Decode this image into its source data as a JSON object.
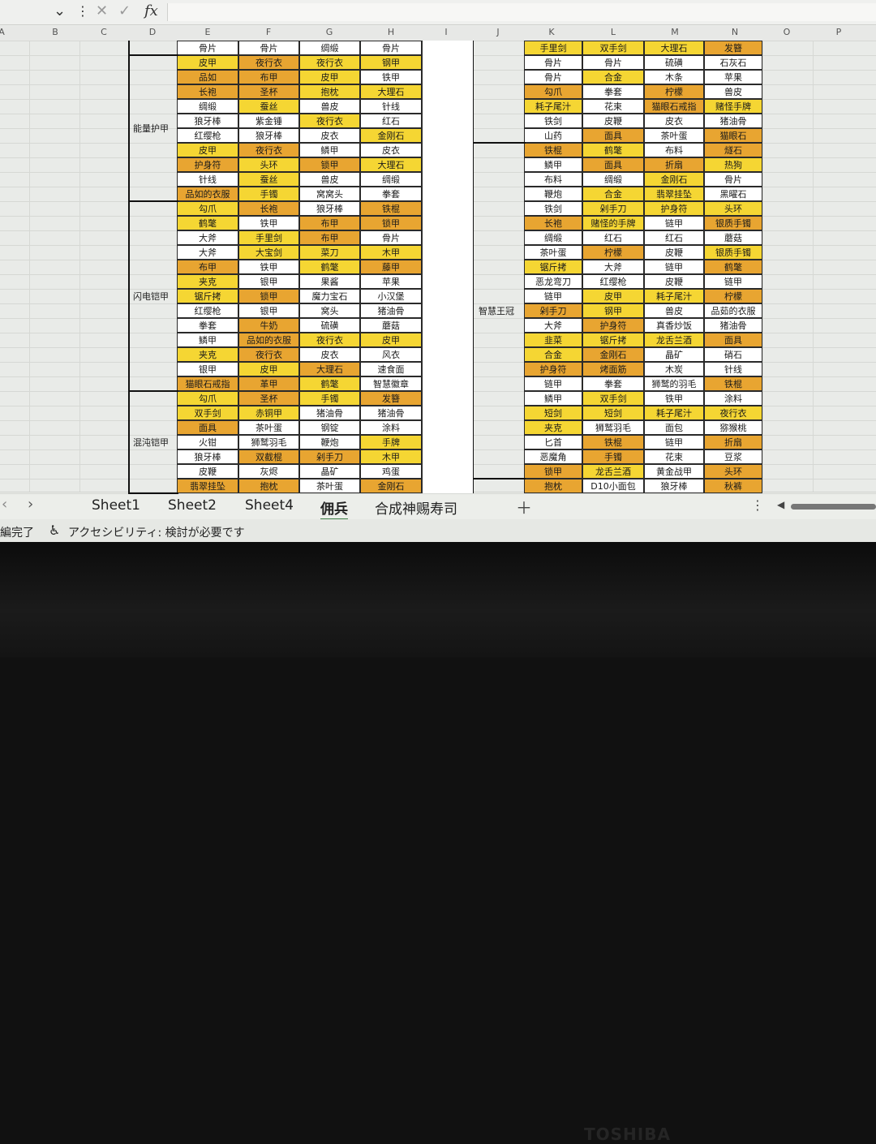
{
  "formula_bar": {
    "dropdown_icon": "chevron-down-icon",
    "more_icon": "more-vertical-icon",
    "cancel_icon": "close-icon",
    "confirm_icon": "check-icon",
    "fx_label": "fx"
  },
  "columns": [
    "A",
    "B",
    "C",
    "D",
    "E",
    "F",
    "G",
    "H",
    "I",
    "J",
    "K",
    "L",
    "M",
    "N",
    "O",
    "P"
  ],
  "colors": {
    "y": "#f5d633",
    "o": "#e8a531",
    "w": "#ffffff"
  },
  "left_groups": [
    {
      "label": "能量护甲",
      "start": 1,
      "end": 10
    },
    {
      "label": "闪电铠甲",
      "start": 11,
      "end": 23
    },
    {
      "label": "混沌铠甲",
      "start": 24,
      "end": 30
    }
  ],
  "right_groups": [
    {
      "label": "智慧王冠",
      "start": 7,
      "end": 29
    }
  ],
  "left_rows": [
    [
      [
        "骨片",
        "w"
      ],
      [
        "骨片",
        "w"
      ],
      [
        "绸缎",
        "w"
      ],
      [
        "骨片",
        "w"
      ]
    ],
    [
      [
        "皮甲",
        "y"
      ],
      [
        "夜行衣",
        "o"
      ],
      [
        "夜行衣",
        "y"
      ],
      [
        "钢甲",
        "y"
      ]
    ],
    [
      [
        "品如",
        "o"
      ],
      [
        "布甲",
        "o"
      ],
      [
        "皮甲",
        "y"
      ],
      [
        "铁甲",
        "w"
      ]
    ],
    [
      [
        "长袍",
        "o"
      ],
      [
        "圣杯",
        "o"
      ],
      [
        "抱枕",
        "y"
      ],
      [
        "大理石",
        "y"
      ]
    ],
    [
      [
        "绸缎",
        "w"
      ],
      [
        "蚕丝",
        "y"
      ],
      [
        "兽皮",
        "w"
      ],
      [
        "针线",
        "w"
      ]
    ],
    [
      [
        "狼牙棒",
        "w"
      ],
      [
        "紫金锤",
        "w"
      ],
      [
        "夜行衣",
        "y"
      ],
      [
        "红石",
        "w"
      ]
    ],
    [
      [
        "红缨枪",
        "w"
      ],
      [
        "狼牙棒",
        "w"
      ],
      [
        "皮衣",
        "w"
      ],
      [
        "金刚石",
        "y"
      ]
    ],
    [
      [
        "皮甲",
        "y"
      ],
      [
        "夜行衣",
        "o"
      ],
      [
        "鳞甲",
        "w"
      ],
      [
        "皮衣",
        "w"
      ]
    ],
    [
      [
        "护身符",
        "o"
      ],
      [
        "头环",
        "y"
      ],
      [
        "锁甲",
        "o"
      ],
      [
        "大理石",
        "y"
      ]
    ],
    [
      [
        "针线",
        "w"
      ],
      [
        "蚕丝",
        "y"
      ],
      [
        "兽皮",
        "w"
      ],
      [
        "绸缎",
        "w"
      ]
    ],
    [
      [
        "品如的衣服",
        "o"
      ],
      [
        "手镯",
        "y"
      ],
      [
        "窝窝头",
        "w"
      ],
      [
        "拳套",
        "w"
      ]
    ],
    [
      [
        "勾爪",
        "y"
      ],
      [
        "长袍",
        "o"
      ],
      [
        "狼牙棒",
        "w"
      ],
      [
        "铁棍",
        "o"
      ]
    ],
    [
      [
        "鹤氅",
        "y"
      ],
      [
        "铁甲",
        "w"
      ],
      [
        "布甲",
        "o"
      ],
      [
        "锁甲",
        "o"
      ]
    ],
    [
      [
        "大斧",
        "w"
      ],
      [
        "手里剑",
        "y"
      ],
      [
        "布甲",
        "o"
      ],
      [
        "骨片",
        "w"
      ]
    ],
    [
      [
        "大斧",
        "w"
      ],
      [
        "大宝剑",
        "y"
      ],
      [
        "菜刀",
        "y"
      ],
      [
        "木甲",
        "y"
      ]
    ],
    [
      [
        "布甲",
        "o"
      ],
      [
        "铁甲",
        "w"
      ],
      [
        "鹤氅",
        "y"
      ],
      [
        "藤甲",
        "o"
      ]
    ],
    [
      [
        "夹克",
        "y"
      ],
      [
        "银甲",
        "w"
      ],
      [
        "果酱",
        "w"
      ],
      [
        "苹果",
        "w"
      ]
    ],
    [
      [
        "锯斤拷",
        "y"
      ],
      [
        "锁甲",
        "o"
      ],
      [
        "魔力宝石",
        "w"
      ],
      [
        "小汉堡",
        "w"
      ]
    ],
    [
      [
        "红缨枪",
        "w"
      ],
      [
        "银甲",
        "w"
      ],
      [
        "窝头",
        "w"
      ],
      [
        "猪油骨",
        "w"
      ]
    ],
    [
      [
        "拳套",
        "w"
      ],
      [
        "牛奶",
        "o"
      ],
      [
        "硫磺",
        "w"
      ],
      [
        "蘑菇",
        "w"
      ]
    ],
    [
      [
        "鳞甲",
        "w"
      ],
      [
        "品如的衣服",
        "o"
      ],
      [
        "夜行衣",
        "y"
      ],
      [
        "皮甲",
        "y"
      ]
    ],
    [
      [
        "夹克",
        "y"
      ],
      [
        "夜行衣",
        "o"
      ],
      [
        "皮衣",
        "w"
      ],
      [
        "风衣",
        "w"
      ]
    ],
    [
      [
        "银甲",
        "w"
      ],
      [
        "皮甲",
        "y"
      ],
      [
        "大理石",
        "o"
      ],
      [
        "速食面",
        "w"
      ]
    ],
    [
      [
        "猫眼石戒指",
        "o"
      ],
      [
        "革甲",
        "o"
      ],
      [
        "鹤氅",
        "y"
      ],
      [
        "智慧徽章",
        "w"
      ]
    ],
    [
      [
        "勾爪",
        "y"
      ],
      [
        "圣杯",
        "o"
      ],
      [
        "手镯",
        "y"
      ],
      [
        "发簪",
        "o"
      ]
    ],
    [
      [
        "双手剑",
        "y"
      ],
      [
        "赤铜甲",
        "y"
      ],
      [
        "猪油骨",
        "w"
      ],
      [
        "猪油骨",
        "w"
      ]
    ],
    [
      [
        "面具",
        "o"
      ],
      [
        "茶叶蛋",
        "w"
      ],
      [
        "钢锭",
        "w"
      ],
      [
        "涂料",
        "w"
      ]
    ],
    [
      [
        "火钳",
        "w"
      ],
      [
        "狮鹫羽毛",
        "w"
      ],
      [
        "鞭炮",
        "w"
      ],
      [
        "手牌",
        "y"
      ]
    ],
    [
      [
        "狼牙棒",
        "w"
      ],
      [
        "双截棍",
        "o"
      ],
      [
        "剁手刀",
        "o"
      ],
      [
        "木甲",
        "y"
      ]
    ],
    [
      [
        "皮鞭",
        "w"
      ],
      [
        "灰烬",
        "w"
      ],
      [
        "晶矿",
        "w"
      ],
      [
        "鸡蛋",
        "w"
      ]
    ],
    [
      [
        "翡翠挂坠",
        "o"
      ],
      [
        "抱枕",
        "o"
      ],
      [
        "茶叶蛋",
        "w"
      ],
      [
        "金刚石",
        "o"
      ]
    ]
  ],
  "right_rows": [
    [
      [
        "手里剑",
        "y"
      ],
      [
        "双手剑",
        "y"
      ],
      [
        "大理石",
        "y"
      ],
      [
        "发簪",
        "o"
      ]
    ],
    [
      [
        "骨片",
        "w"
      ],
      [
        "骨片",
        "w"
      ],
      [
        "硫磺",
        "w"
      ],
      [
        "石灰石",
        "w"
      ]
    ],
    [
      [
        "骨片",
        "w"
      ],
      [
        "合金",
        "y"
      ],
      [
        "木条",
        "w"
      ],
      [
        "苹果",
        "w"
      ]
    ],
    [
      [
        "勾爪",
        "o"
      ],
      [
        "拳套",
        "w"
      ],
      [
        "柠檬",
        "o"
      ],
      [
        "兽皮",
        "w"
      ]
    ],
    [
      [
        "耗子尾汁",
        "y"
      ],
      [
        "花束",
        "w"
      ],
      [
        "猫眼石戒指",
        "o"
      ],
      [
        "赌怪手牌",
        "y"
      ]
    ],
    [
      [
        "铁剑",
        "w"
      ],
      [
        "皮鞭",
        "w"
      ],
      [
        "皮衣",
        "w"
      ],
      [
        "猪油骨",
        "w"
      ]
    ],
    [
      [
        "山药",
        "w"
      ],
      [
        "面具",
        "o"
      ],
      [
        "茶叶蛋",
        "w"
      ],
      [
        "猫眼石",
        "o"
      ]
    ],
    [
      [
        "铁棍",
        "o"
      ],
      [
        "鹤氅",
        "y"
      ],
      [
        "布料",
        "w"
      ],
      [
        "燧石",
        "o"
      ]
    ],
    [
      [
        "鳞甲",
        "w"
      ],
      [
        "面具",
        "o"
      ],
      [
        "折扇",
        "o"
      ],
      [
        "热狗",
        "y"
      ]
    ],
    [
      [
        "布料",
        "w"
      ],
      [
        "绸缎",
        "w"
      ],
      [
        "金刚石",
        "y"
      ],
      [
        "骨片",
        "w"
      ]
    ],
    [
      [
        "鞭炮",
        "w"
      ],
      [
        "合金",
        "y"
      ],
      [
        "翡翠挂坠",
        "y"
      ],
      [
        "黑曜石",
        "w"
      ]
    ],
    [
      [
        "铁剑",
        "w"
      ],
      [
        "剁手刀",
        "y"
      ],
      [
        "护身符",
        "y"
      ],
      [
        "头环",
        "y"
      ]
    ],
    [
      [
        "长袍",
        "o"
      ],
      [
        "赌怪的手牌",
        "y"
      ],
      [
        "链甲",
        "w"
      ],
      [
        "银质手镯",
        "o"
      ]
    ],
    [
      [
        "绸缎",
        "w"
      ],
      [
        "红石",
        "w"
      ],
      [
        "红石",
        "w"
      ],
      [
        "蘑菇",
        "w"
      ]
    ],
    [
      [
        "茶叶蛋",
        "w"
      ],
      [
        "柠檬",
        "o"
      ],
      [
        "皮鞭",
        "w"
      ],
      [
        "银质手镯",
        "y"
      ]
    ],
    [
      [
        "锯斤拷",
        "y"
      ],
      [
        "大斧",
        "w"
      ],
      [
        "链甲",
        "w"
      ],
      [
        "鹤氅",
        "o"
      ]
    ],
    [
      [
        "恶龙弯刀",
        "w"
      ],
      [
        "红缨枪",
        "w"
      ],
      [
        "皮鞭",
        "w"
      ],
      [
        "链甲",
        "w"
      ]
    ],
    [
      [
        "链甲",
        "w"
      ],
      [
        "皮甲",
        "y"
      ],
      [
        "耗子尾汁",
        "y"
      ],
      [
        "柠檬",
        "o"
      ]
    ],
    [
      [
        "剁手刀",
        "o"
      ],
      [
        "钢甲",
        "y"
      ],
      [
        "兽皮",
        "w"
      ],
      [
        "品茹的衣服",
        "w"
      ]
    ],
    [
      [
        "大斧",
        "w"
      ],
      [
        "护身符",
        "o"
      ],
      [
        "真香炒饭",
        "w"
      ],
      [
        "猪油骨",
        "w"
      ]
    ],
    [
      [
        "韭菜",
        "y"
      ],
      [
        "锯斤拷",
        "y"
      ],
      [
        "龙舌兰酒",
        "y"
      ],
      [
        "面具",
        "o"
      ]
    ],
    [
      [
        "合金",
        "y"
      ],
      [
        "金刚石",
        "o"
      ],
      [
        "晶矿",
        "w"
      ],
      [
        "硝石",
        "w"
      ]
    ],
    [
      [
        "护身符",
        "o"
      ],
      [
        "烤面筋",
        "o"
      ],
      [
        "木炭",
        "w"
      ],
      [
        "针线",
        "w"
      ]
    ],
    [
      [
        "链甲",
        "w"
      ],
      [
        "拳套",
        "w"
      ],
      [
        "狮鹫的羽毛",
        "w"
      ],
      [
        "铁棍",
        "o"
      ]
    ],
    [
      [
        "鳞甲",
        "w"
      ],
      [
        "双手剑",
        "y"
      ],
      [
        "铁甲",
        "w"
      ],
      [
        "涂料",
        "w"
      ]
    ],
    [
      [
        "短剑",
        "y"
      ],
      [
        "短剑",
        "y"
      ],
      [
        "耗子尾汁",
        "y"
      ],
      [
        "夜行衣",
        "y"
      ]
    ],
    [
      [
        "夹克",
        "y"
      ],
      [
        "狮鹫羽毛",
        "w"
      ],
      [
        "面包",
        "w"
      ],
      [
        "猕猴桃",
        "w"
      ]
    ],
    [
      [
        "匕首",
        "w"
      ],
      [
        "铁棍",
        "o"
      ],
      [
        "链甲",
        "w"
      ],
      [
        "折扇",
        "o"
      ]
    ],
    [
      [
        "恶魔角",
        "w"
      ],
      [
        "手镯",
        "o"
      ],
      [
        "花束",
        "w"
      ],
      [
        "豆浆",
        "w"
      ]
    ],
    [
      [
        "锁甲",
        "o"
      ],
      [
        "龙舌兰酒",
        "y"
      ],
      [
        "黄金战甲",
        "w"
      ],
      [
        "头环",
        "o"
      ]
    ],
    [
      [
        "抱枕",
        "o"
      ],
      [
        "D10小面包",
        "w"
      ],
      [
        "狼牙棒",
        "w"
      ],
      [
        "秋裤",
        "o"
      ]
    ]
  ],
  "sheet_tabs": [
    {
      "label": "Sheet1",
      "active": false
    },
    {
      "label": "Sheet2",
      "active": false
    },
    {
      "label": "Sheet4",
      "active": false
    },
    {
      "label": "佣兵",
      "active": true
    },
    {
      "label": "合成神赐寿司",
      "active": false
    }
  ],
  "tab_nav": {
    "prev_icon": "chevron-left-icon",
    "next_icon": "chevron-right-icon",
    "add_icon": "plus-icon",
    "more_icon": "more-vertical-icon",
    "scroll_left_icon": "caret-left-icon"
  },
  "status": {
    "ready": "編完了",
    "accessibility_icon": "accessibility-icon",
    "accessibility": "アクセシビリティ: 検討が必要です"
  },
  "bezel": {
    "logo": "TOSHIBA"
  }
}
